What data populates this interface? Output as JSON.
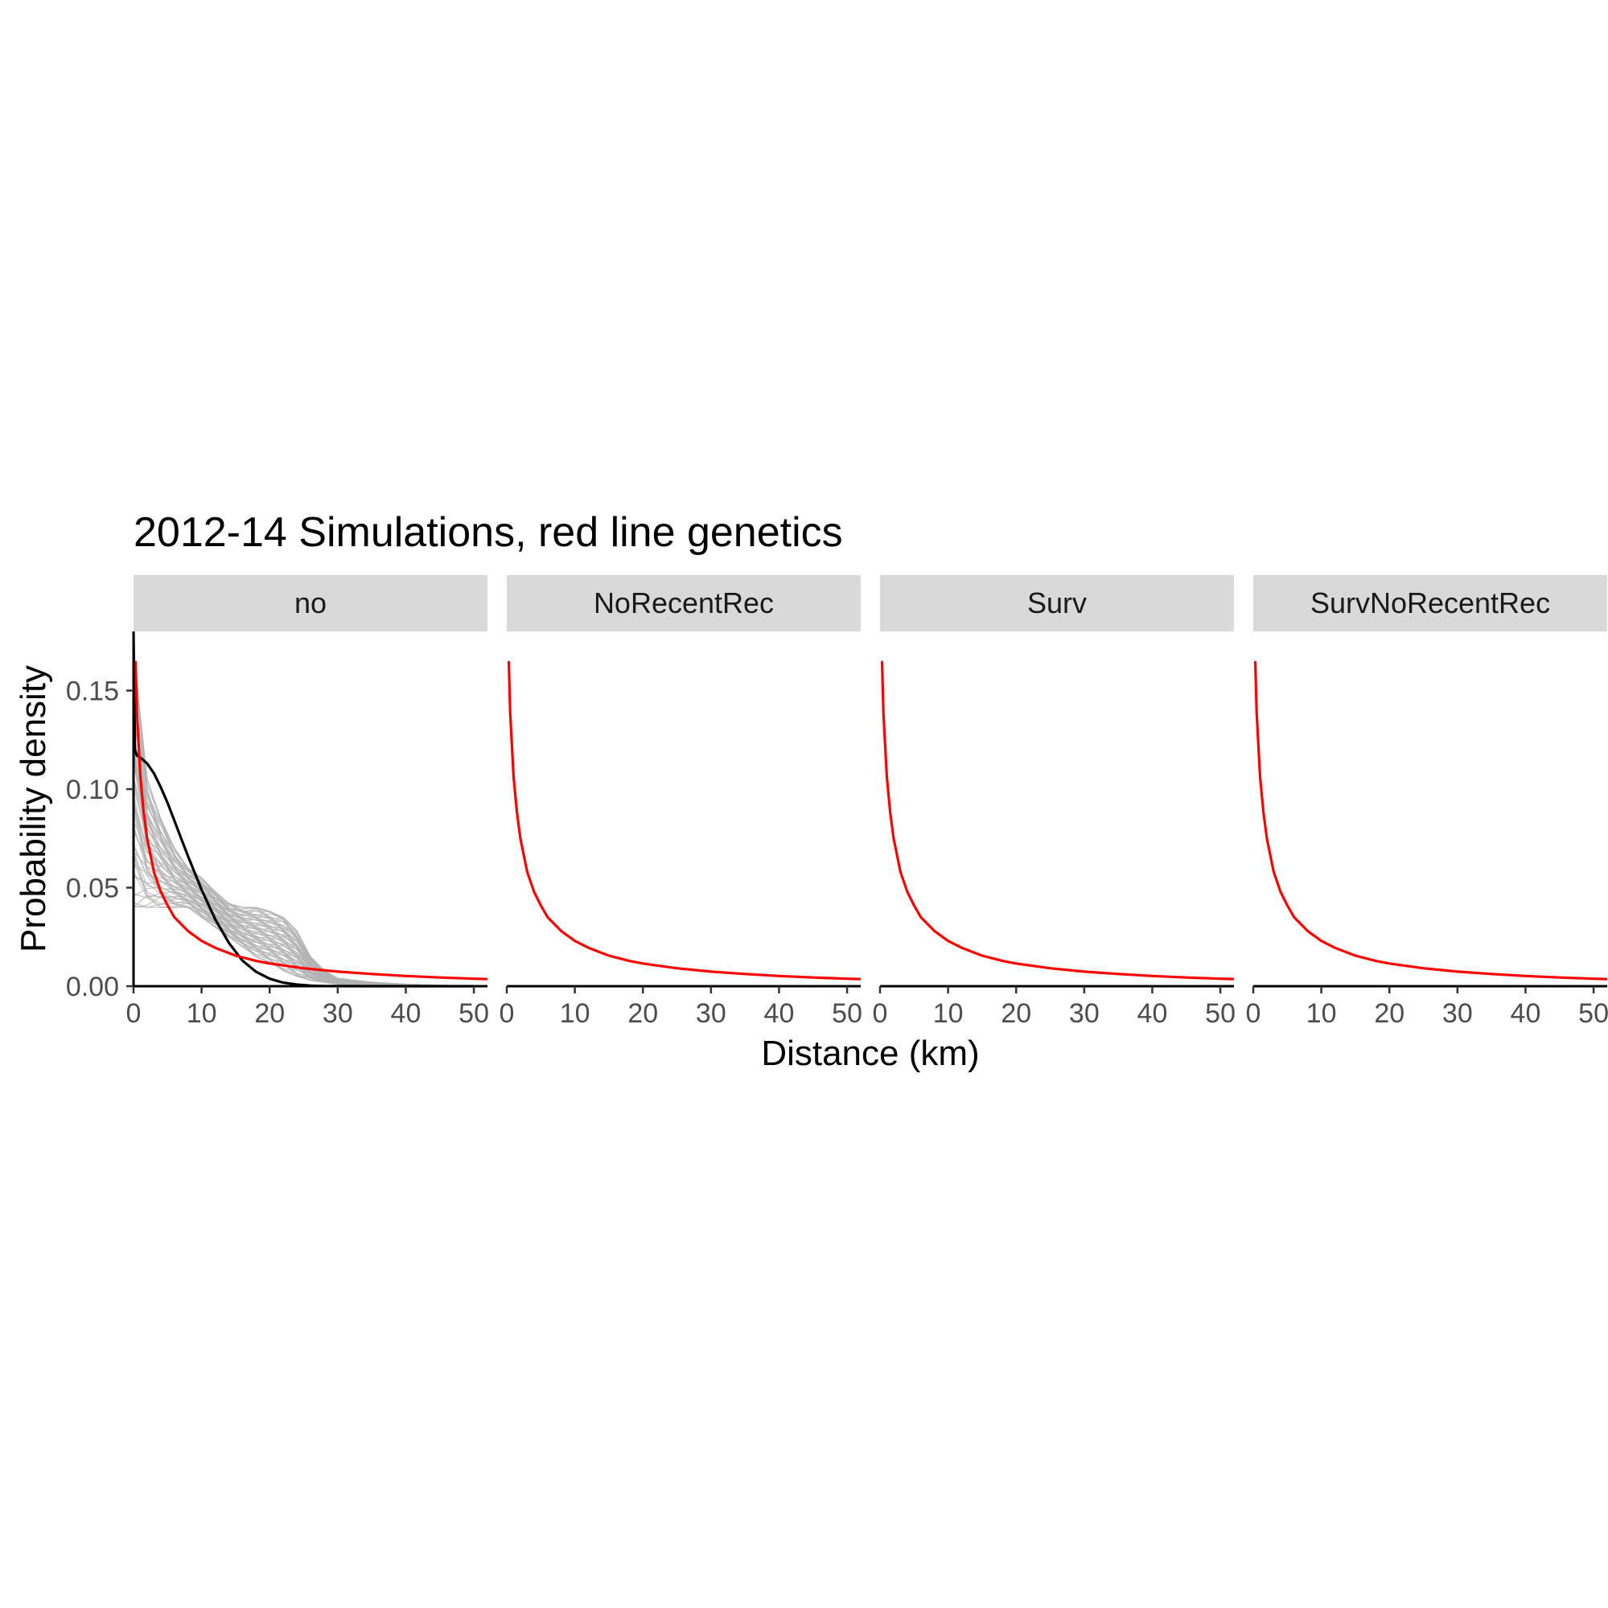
{
  "chart_data": {
    "type": "line",
    "title": "2012-14 Simulations, red line genetics",
    "xlabel": "Distance (km)",
    "ylabel": "Probability density",
    "xlim": [
      0,
      52
    ],
    "ylim": [
      0,
      0.18
    ],
    "x_ticks": [
      "0",
      "10",
      "20",
      "30",
      "40",
      "50"
    ],
    "y_ticks": [
      "0.00",
      "0.05",
      "0.10",
      "0.15"
    ],
    "x_tick_values": [
      0,
      10,
      20,
      30,
      40,
      50
    ],
    "y_tick_values": [
      0,
      0.05,
      0.1,
      0.15
    ],
    "grid": false,
    "legend": "none",
    "colors": {
      "genetics_line": "#ff0000",
      "observed_line": "#000000",
      "simulation_lines": "#b3b3b3",
      "strip_background": "#d9d9d9"
    },
    "panels": [
      {
        "label": "no",
        "series": [
          {
            "style": "simulations",
            "x": [
              0,
              2,
              4,
              6,
              8,
              10,
              12,
              14,
              16,
              18,
              20,
              22,
              24,
              26,
              28,
              30,
              35,
              40,
              50
            ],
            "y_range_at_x": [
              [
                0.04,
                0.17
              ],
              [
                0.04,
                0.105
              ],
              [
                0.04,
                0.085
              ],
              [
                0.04,
                0.07
              ],
              [
                0.04,
                0.06
              ],
              [
                0.035,
                0.055
              ],
              [
                0.03,
                0.048
              ],
              [
                0.025,
                0.042
              ],
              [
                0.02,
                0.04
              ],
              [
                0.015,
                0.04
              ],
              [
                0.012,
                0.038
              ],
              [
                0.008,
                0.035
              ],
              [
                0.005,
                0.028
              ],
              [
                0.003,
                0.015
              ],
              [
                0.002,
                0.008
              ],
              [
                0.001,
                0.004
              ],
              [
                0,
                0.002
              ],
              [
                0,
                0.001
              ],
              [
                0,
                0
              ]
            ],
            "count": 60
          },
          {
            "style": "observed",
            "x": [
              0,
              0.2,
              0.5,
              1,
              2,
              3,
              4,
              5,
              6,
              7,
              8,
              10,
              12,
              14,
              16,
              18,
              20,
              22,
              24,
              26,
              28,
              30,
              35,
              40,
              45,
              50
            ],
            "y": [
              0.18,
              0.12,
              0.117,
              0.116,
              0.113,
              0.108,
              0.101,
              0.093,
              0.084,
              0.075,
              0.066,
              0.049,
              0.034,
              0.022,
              0.013,
              0.0073,
              0.0038,
              0.0018,
              0.0008,
              0.0003,
              0.0001,
              5e-05,
              0,
              0,
              0,
              0
            ]
          },
          {
            "style": "genetics",
            "x": [
              0.3,
              0.5,
              1,
              1.5,
              2,
              3,
              4,
              5,
              6,
              8,
              10,
              12,
              15,
              18,
              20,
              25,
              30,
              35,
              40,
              45,
              50,
              52
            ],
            "y": [
              0.165,
              0.139,
              0.106,
              0.088,
              0.075,
              0.058,
              0.048,
              0.041,
              0.035,
              0.028,
              0.023,
              0.0195,
              0.0155,
              0.0128,
              0.0115,
              0.0091,
              0.0074,
              0.0062,
              0.0052,
              0.0044,
              0.0038,
              0.0036
            ]
          }
        ]
      },
      {
        "label": "NoRecentRec",
        "series": [
          {
            "style": "genetics",
            "x": [
              0.3,
              0.5,
              1,
              1.5,
              2,
              3,
              4,
              5,
              6,
              8,
              10,
              12,
              15,
              18,
              20,
              25,
              30,
              35,
              40,
              45,
              50,
              52
            ],
            "y": [
              0.165,
              0.139,
              0.106,
              0.088,
              0.075,
              0.058,
              0.048,
              0.041,
              0.035,
              0.028,
              0.023,
              0.0195,
              0.0155,
              0.0128,
              0.0115,
              0.0091,
              0.0074,
              0.0062,
              0.0052,
              0.0044,
              0.0038,
              0.0036
            ]
          }
        ]
      },
      {
        "label": "Surv",
        "series": [
          {
            "style": "genetics",
            "x": [
              0.3,
              0.5,
              1,
              1.5,
              2,
              3,
              4,
              5,
              6,
              8,
              10,
              12,
              15,
              18,
              20,
              25,
              30,
              35,
              40,
              45,
              50,
              52
            ],
            "y": [
              0.165,
              0.139,
              0.106,
              0.088,
              0.075,
              0.058,
              0.048,
              0.041,
              0.035,
              0.028,
              0.023,
              0.0195,
              0.0155,
              0.0128,
              0.0115,
              0.0091,
              0.0074,
              0.0062,
              0.0052,
              0.0044,
              0.0038,
              0.0036
            ]
          }
        ]
      },
      {
        "label": "SurvNoRecentRec",
        "series": [
          {
            "style": "genetics",
            "x": [
              0.3,
              0.5,
              1,
              1.5,
              2,
              3,
              4,
              5,
              6,
              8,
              10,
              12,
              15,
              18,
              20,
              25,
              30,
              35,
              40,
              45,
              50,
              52
            ],
            "y": [
              0.165,
              0.139,
              0.106,
              0.088,
              0.075,
              0.058,
              0.048,
              0.041,
              0.035,
              0.028,
              0.023,
              0.0195,
              0.0155,
              0.0128,
              0.0115,
              0.0091,
              0.0074,
              0.0062,
              0.0052,
              0.0044,
              0.0038,
              0.0036
            ]
          }
        ]
      }
    ]
  }
}
